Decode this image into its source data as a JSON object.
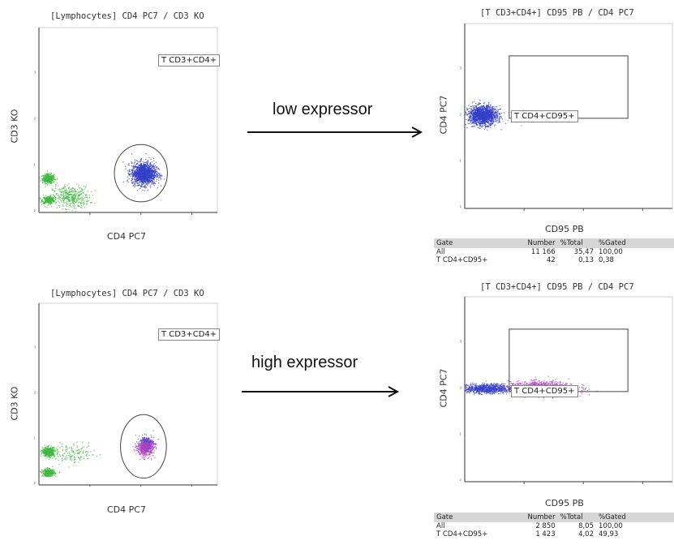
{
  "chart_data": [
    {
      "type": "scatter",
      "id": "top-left",
      "title": "[Lymphocytes] CD4 PC7 / CD3 KO",
      "xlabel": "CD4 PC7",
      "ylabel": "CD3 KO",
      "x_ticks": [
        "10¹",
        "10²",
        "10³",
        "10³"
      ],
      "y_ticks": [
        "10³",
        "10²",
        "10¹",
        "10°"
      ],
      "gate": "T CD3+CD4+",
      "series": [
        {
          "color": "#3fb83f",
          "clusters": [
            {
              "x": 0.18,
              "y": 0.74,
              "sx": 0.06,
              "sy": 0.05,
              "n": 420
            },
            {
              "x": 0.18,
              "y": 0.28,
              "sx": 0.06,
              "sy": 0.04,
              "n": 320
            },
            {
              "x": 0.62,
              "y": 0.34,
              "sx": 0.18,
              "sy": 0.12,
              "n": 400
            }
          ]
        },
        {
          "color": "#3340c8",
          "clusters": [
            {
              "x": 2.05,
              "y": 0.85,
              "sx": 0.12,
              "sy": 0.12,
              "n": 1500
            }
          ]
        }
      ],
      "ellipse": {
        "cx": 2.0,
        "cy": 0.85,
        "rx": 0.52,
        "ry": 0.62
      }
    },
    {
      "type": "scatter",
      "id": "top-right",
      "title": "[T CD3+CD4+] CD95 PB / CD4 PC7",
      "xlabel": "CD95 PB",
      "ylabel": "CD4 PC7",
      "x_ticks": [
        "10¹",
        "10²",
        "10³",
        "10³"
      ],
      "y_ticks": [
        "10³",
        "10²",
        "10¹",
        "10°"
      ],
      "gate": "T CD4+CD95+",
      "gate_rect": {
        "x0": 0.75,
        "x1": 2.75,
        "y0": 1.95,
        "y1": 3.3
      },
      "series": [
        {
          "color": "#3340c8",
          "clusters": [
            {
              "x": 0.3,
              "y": 2.02,
              "sx": 0.12,
              "sy": 0.1,
              "n": 1600
            }
          ]
        },
        {
          "color": "#b070c8",
          "clusters": [
            {
              "x": 1.0,
              "y": 2.0,
              "sx": 0.15,
              "sy": 0.06,
              "n": 14
            }
          ]
        }
      ],
      "stats": {
        "headers": [
          "Gate",
          "Number",
          "%Total",
          "%Gated"
        ],
        "rows": [
          [
            "All",
            "11 166",
            "35,47",
            "100,00"
          ],
          [
            "T CD4+CD95+",
            "42",
            "0,13",
            "0,38"
          ]
        ]
      },
      "arrow_label": "low expressor"
    },
    {
      "type": "scatter",
      "id": "bottom-left",
      "title": "[Lymphocytes] CD4 PC7 / CD3 KO",
      "xlabel": "CD4 PC7",
      "ylabel": "CD3 KO",
      "x_ticks": [
        "10¹",
        "10²",
        "10³",
        "10³"
      ],
      "y_ticks": [
        "10³",
        "10²",
        "10¹",
        "10°"
      ],
      "gate": "T CD3+CD4+",
      "series": [
        {
          "color": "#3fb83f",
          "clusters": [
            {
              "x": 0.18,
              "y": 0.74,
              "sx": 0.06,
              "sy": 0.05,
              "n": 460
            },
            {
              "x": 0.18,
              "y": 0.28,
              "sx": 0.06,
              "sy": 0.04,
              "n": 360
            },
            {
              "x": 0.65,
              "y": 0.7,
              "sx": 0.22,
              "sy": 0.1,
              "n": 150
            }
          ]
        },
        {
          "color": "#3340c8",
          "clusters": [
            {
              "x": 2.1,
              "y": 0.92,
              "sx": 0.07,
              "sy": 0.08,
              "n": 300
            }
          ]
        },
        {
          "color": "#b040c0",
          "clusters": [
            {
              "x": 2.08,
              "y": 0.82,
              "sx": 0.08,
              "sy": 0.09,
              "n": 500
            }
          ]
        }
      ],
      "ellipse": {
        "cx": 2.05,
        "cy": 0.85,
        "rx": 0.45,
        "ry": 0.7
      }
    },
    {
      "type": "scatter",
      "id": "bottom-right",
      "title": "[T CD3+CD4+] CD95 PB / CD4 PC7",
      "xlabel": "CD95 PB",
      "ylabel": "CD4 PC7",
      "x_ticks": [
        "10¹",
        "10²",
        "10³",
        "10³"
      ],
      "y_ticks": [
        "10³",
        "10²",
        "10¹",
        "10°"
      ],
      "gate": "T CD4+CD95+",
      "gate_rect": {
        "x0": 0.75,
        "x1": 2.75,
        "y0": 1.95,
        "y1": 3.3
      },
      "series": [
        {
          "color": "#3340c8",
          "clusters": [
            {
              "x": 0.35,
              "y": 2.02,
              "sx": 0.22,
              "sy": 0.05,
              "n": 900
            }
          ]
        },
        {
          "color": "#b040c0",
          "clusters": [
            {
              "x": 1.3,
              "y": 2.04,
              "sx": 0.28,
              "sy": 0.07,
              "n": 1200
            }
          ]
        }
      ],
      "stats": {
        "headers": [
          "Gate",
          "Number",
          "%Total",
          "%Gated"
        ],
        "rows": [
          [
            "All",
            "2 850",
            "8,05",
            "100,00"
          ],
          [
            "T CD4+CD95+",
            "1 423",
            "4,02",
            "49,93"
          ]
        ]
      },
      "arrow_label": "high expressor"
    }
  ]
}
